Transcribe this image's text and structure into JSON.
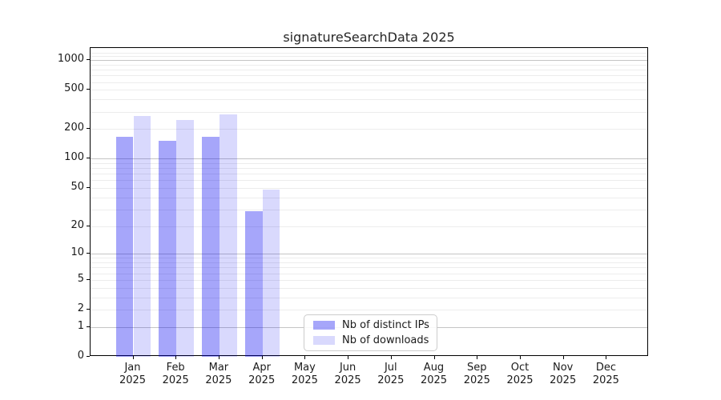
{
  "title": "signatureSearchData 2025",
  "chart_data": {
    "type": "bar",
    "title": "signatureSearchData 2025",
    "xlabel": "",
    "ylabel": "",
    "scale": "log10(value+1)",
    "categories": [
      "Jan",
      "Feb",
      "Mar",
      "Apr",
      "May",
      "Jun",
      "Jul",
      "Aug",
      "Sep",
      "Oct",
      "Nov",
      "Dec"
    ],
    "year_label": "2025",
    "series": [
      {
        "name": "Nb of distinct IPs",
        "color": "rgba(0,0,240,0.35)",
        "values": [
          166,
          153,
          166,
          29,
          0,
          0,
          0,
          0,
          0,
          0,
          0,
          0
        ]
      },
      {
        "name": "Nb of downloads",
        "color": "rgba(0,0,240,0.15)",
        "values": [
          272,
          246,
          281,
          48,
          0,
          0,
          0,
          0,
          0,
          0,
          0,
          0
        ]
      }
    ],
    "yticks": [
      1000,
      500,
      200,
      100,
      50,
      20,
      10,
      5,
      2,
      1,
      0
    ],
    "ylim": [
      0,
      1300
    ],
    "grid": {
      "major_values": [
        1,
        10,
        100,
        1000
      ],
      "minor_values": [
        2,
        3,
        4,
        5,
        6,
        7,
        8,
        9,
        20,
        30,
        40,
        50,
        60,
        70,
        80,
        90,
        200,
        300,
        400,
        500,
        600,
        700,
        800,
        900,
        1100,
        1200
      ],
      "major_color": "#c5c5c5",
      "minor_color": "#ececec"
    },
    "legend_position": "inside-bottom-center"
  }
}
